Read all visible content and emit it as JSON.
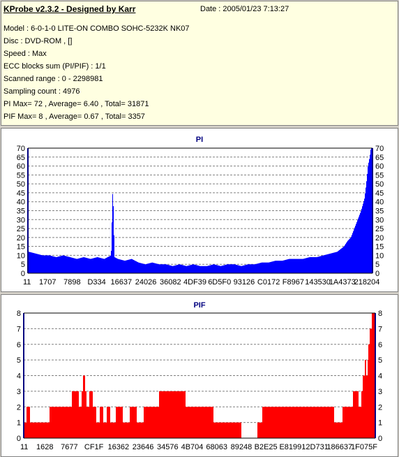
{
  "header": {
    "title": "KProbe v2.3.2 - Designed by Karr",
    "date": "Date : 2005/01/23 7:13:27",
    "lines": [
      "Model : 6-0-1-0 LITE-ON COMBO SOHC-5232K NK07",
      "Disc : DVD-ROM ,  []",
      "Speed : Max",
      "ECC blocks sum (PI/PIF) : 1/1",
      "Scanned range : 0 - 2298981",
      "Sampling count : 4976",
      "PI Max= 72 , Average= 6.40 , Total= 31871",
      "PIF Max= 8 , Average= 0.67 , Total= 3357"
    ]
  },
  "chart_data": [
    {
      "type": "bar",
      "title": "PI",
      "ylim": [
        0,
        70
      ],
      "yticks": [
        0,
        5,
        10,
        15,
        20,
        25,
        30,
        35,
        40,
        45,
        50,
        55,
        60,
        65,
        70
      ],
      "xticklabels": [
        "11",
        "1707",
        "7898",
        "D334",
        "16637",
        "24026",
        "36082",
        "4DF39",
        "6D5F0",
        "93126",
        "C0172",
        "F8967",
        "143530",
        "1A4373",
        "218204"
      ],
      "color": "#0000ff",
      "grid": true,
      "x": [
        0,
        2,
        4,
        6,
        8,
        10,
        12,
        14,
        16,
        18,
        20,
        22,
        24,
        24.5,
        25,
        26,
        28,
        30,
        32,
        34,
        36,
        38,
        40,
        42,
        44,
        46,
        48,
        50,
        52,
        54,
        56,
        58,
        60,
        62,
        64,
        66,
        68,
        70,
        72,
        74,
        76,
        78,
        80,
        82,
        84,
        86,
        88,
        90,
        92,
        93,
        94,
        95,
        96,
        97,
        98,
        98.5,
        99,
        99.5,
        100
      ],
      "values": [
        12,
        11,
        10,
        10,
        9,
        10,
        9,
        8,
        9,
        8,
        9,
        8,
        10,
        49,
        9,
        8,
        7,
        8,
        6,
        5,
        6,
        5,
        5,
        4,
        5,
        4,
        5,
        4,
        4,
        5,
        4,
        5,
        5,
        4,
        5,
        5,
        6,
        6,
        7,
        7,
        8,
        8,
        8,
        9,
        9,
        10,
        11,
        12,
        15,
        18,
        20,
        25,
        30,
        35,
        42,
        50,
        60,
        65,
        72
      ]
    },
    {
      "type": "bar",
      "title": "PIF",
      "ylim": [
        0,
        8
      ],
      "yticks": [
        0,
        1,
        2,
        3,
        4,
        5,
        6,
        7,
        8
      ],
      "xticklabels": [
        "11",
        "1628",
        "7677",
        "CF1F",
        "16362",
        "23646",
        "34576",
        "4B704",
        "68063",
        "89248",
        "B2E25",
        "E8199",
        "12D731",
        "186637",
        "1F075F"
      ],
      "color": "#ff0000",
      "grid": true,
      "x": [
        0,
        1,
        2,
        12,
        15,
        16,
        17,
        18,
        19,
        20,
        21,
        22,
        23,
        24,
        25,
        27,
        29,
        31,
        33,
        35,
        42,
        66,
        67,
        69,
        88,
        89,
        93,
        95,
        96,
        97,
        97.5,
        98,
        98.5,
        99,
        99.5,
        100
      ],
      "values": [
        1,
        2,
        1,
        2,
        3,
        2,
        4,
        2,
        3,
        2,
        1,
        2,
        1,
        2,
        1,
        2,
        1,
        2,
        1,
        2,
        3,
        0,
        1,
        2,
        2,
        1,
        2,
        3,
        2,
        4,
        5,
        4,
        6,
        7,
        8,
        8
      ]
    }
  ]
}
